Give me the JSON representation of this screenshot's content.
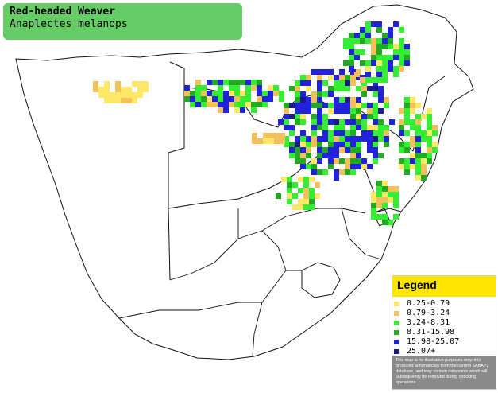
{
  "title": {
    "common_name": "Red-headed Weaver",
    "scientific_name": "Anaplectes melanops"
  },
  "map": {
    "land_color": "#ffffff",
    "border_color": "#111111"
  },
  "legend": {
    "heading": "Legend",
    "items": [
      {
        "label": "0.25-0.79",
        "color": "#ffe866"
      },
      {
        "label": "0.79-3.24",
        "color": "#f3c05a"
      },
      {
        "label": "3.24-8.31",
        "color": "#33ee33"
      },
      {
        "label": "8.31-15.98",
        "color": "#22aa22"
      },
      {
        "label": "15.98-25.07",
        "color": "#2222dd"
      },
      {
        "label": "25.07+",
        "color": "#1a1a88"
      }
    ],
    "disclaimer": "This map is for illustrative purposes only; it is produced automatically from the current SABAP2 database, and may contain datapoints which will subsequently be removed during checking operations."
  }
}
